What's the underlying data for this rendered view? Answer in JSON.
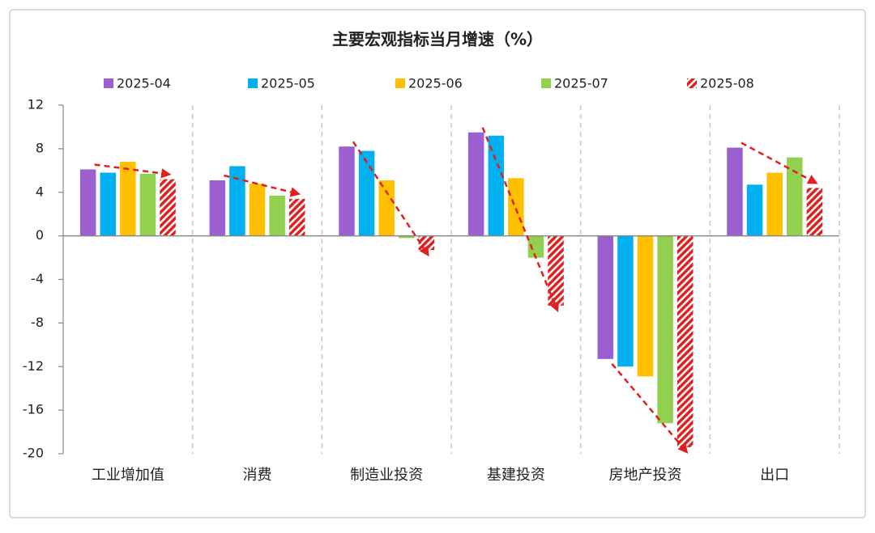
{
  "chart_data": {
    "type": "bar",
    "title": "主要宏观指标当月增速（%）",
    "categories": [
      "工业增加值",
      "消费",
      "制造业投资",
      "基建投资",
      "房地产投资",
      "出口"
    ],
    "series": [
      {
        "name": "2025-04",
        "color": "#9b5fd0",
        "values": [
          6.1,
          5.1,
          8.2,
          9.5,
          -11.3,
          8.1
        ]
      },
      {
        "name": "2025-05",
        "color": "#00b0f0",
        "values": [
          5.8,
          6.4,
          7.8,
          9.2,
          -12.0,
          4.7
        ]
      },
      {
        "name": "2025-06",
        "color": "#ffc000",
        "values": [
          6.8,
          4.8,
          5.1,
          5.3,
          -12.9,
          5.8
        ]
      },
      {
        "name": "2025-07",
        "color": "#92d050",
        "values": [
          5.7,
          3.7,
          -0.2,
          -2.0,
          -17.2,
          7.2
        ]
      },
      {
        "name": "2025-08",
        "color": "#e02020",
        "hatch": true,
        "values": [
          5.2,
          3.4,
          -1.3,
          -6.4,
          -19.4,
          4.4
        ]
      }
    ],
    "ylim": [
      -20,
      12
    ],
    "yticks": [
      -20,
      -16,
      -12,
      -8,
      -4,
      0,
      4,
      8,
      12
    ]
  }
}
